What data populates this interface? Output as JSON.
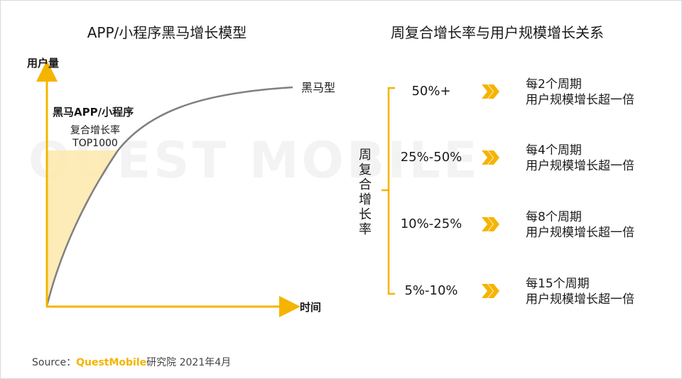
{
  "left_title": "APP/小程序黑马增长模型",
  "right_title": "周复合增长率与用户规模增长关系",
  "chart": {
    "y_axis_label": "用户量",
    "x_axis_label": "时间",
    "curve_label": "黑马型",
    "shaded_title": "黑马APP/小程序",
    "shaded_sub1": "复合增长率",
    "shaded_sub2": "TOP1000"
  },
  "bracket_label": [
    "周",
    "复",
    "合",
    "增",
    "长",
    "率"
  ],
  "rows": [
    {
      "rate": "50%+",
      "line1": "每2个周期",
      "line2": "用户规模增长超一倍"
    },
    {
      "rate": "25%-50%",
      "line1": "每4个周期",
      "line2": "用户规模增长超一倍"
    },
    {
      "rate": "10%-25%",
      "line1": "每8个周期",
      "line2": "用户规模增长超一倍"
    },
    {
      "rate": "5%-10%",
      "line1": "每15个周期",
      "line2": "用户规模增长超一倍"
    }
  ],
  "source": {
    "prefix": "Source：",
    "brand": "QuestMobile",
    "suffix": "研究院 2021年4月"
  },
  "watermark": "QUEST MOBILE",
  "colors": {
    "accent": "#f5b400",
    "shade": "#fde9b0",
    "curve": "#808080"
  }
}
